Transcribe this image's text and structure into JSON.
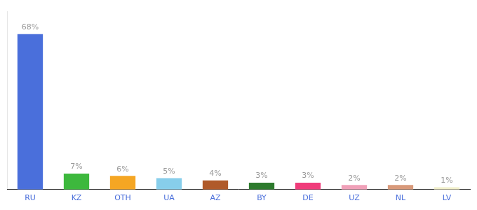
{
  "chart_data": {
    "type": "bar",
    "categories": [
      "RU",
      "KZ",
      "OTH",
      "UA",
      "AZ",
      "BY",
      "DE",
      "UZ",
      "NL",
      "LV"
    ],
    "values": [
      68,
      7,
      6,
      5,
      4,
      3,
      3,
      2,
      2,
      1
    ],
    "value_labels": [
      "68%",
      "7%",
      "6%",
      "5%",
      "4%",
      "3%",
      "3%",
      "2%",
      "2%",
      "1%"
    ],
    "colors": [
      "#4a6fdb",
      "#3db83d",
      "#f5a623",
      "#87ceeb",
      "#b05a2a",
      "#2d7a2d",
      "#f03c7a",
      "#f0a0b8",
      "#d8997a",
      "#f0eec8"
    ],
    "data_labels": true,
    "ylim": [
      0,
      78
    ],
    "grid": false,
    "tick_labels": "x"
  }
}
